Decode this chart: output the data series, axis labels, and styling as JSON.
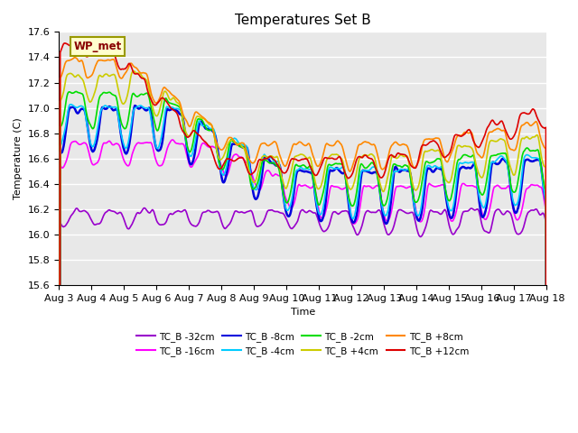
{
  "title": "Temperatures Set B",
  "xlabel": "Time",
  "ylabel": "Temperature (C)",
  "ylim": [
    15.6,
    17.6
  ],
  "xlim_days": [
    3,
    18
  ],
  "x_ticks": [
    3,
    4,
    5,
    6,
    7,
    8,
    9,
    10,
    11,
    12,
    13,
    14,
    15,
    16,
    17,
    18
  ],
  "x_tick_labels": [
    "Aug 3",
    "Aug 4",
    "Aug 5",
    "Aug 6",
    "Aug 7",
    "Aug 8",
    "Aug 9",
    "Aug 10",
    "Aug 11",
    "Aug 12",
    "Aug 13",
    "Aug 14",
    "Aug 15",
    "Aug 16",
    "Aug 17",
    "Aug 18"
  ],
  "legend_text": "WP_met",
  "series": [
    {
      "label": "TC_B -32cm",
      "color": "#9900cc",
      "lw": 1.2
    },
    {
      "label": "TC_B -16cm",
      "color": "#ff00ff",
      "lw": 1.2
    },
    {
      "label": "TC_B -8cm",
      "color": "#0000dd",
      "lw": 1.8
    },
    {
      "label": "TC_B -4cm",
      "color": "#00ccff",
      "lw": 1.2
    },
    {
      "label": "TC_B -2cm",
      "color": "#00dd00",
      "lw": 1.2
    },
    {
      "label": "TC_B +4cm",
      "color": "#cccc00",
      "lw": 1.2
    },
    {
      "label": "TC_B +8cm",
      "color": "#ff8800",
      "lw": 1.2
    },
    {
      "label": "TC_B +12cm",
      "color": "#dd0000",
      "lw": 1.2
    }
  ],
  "bg_color": "#e8e8e8",
  "grid_color": "#ffffff"
}
